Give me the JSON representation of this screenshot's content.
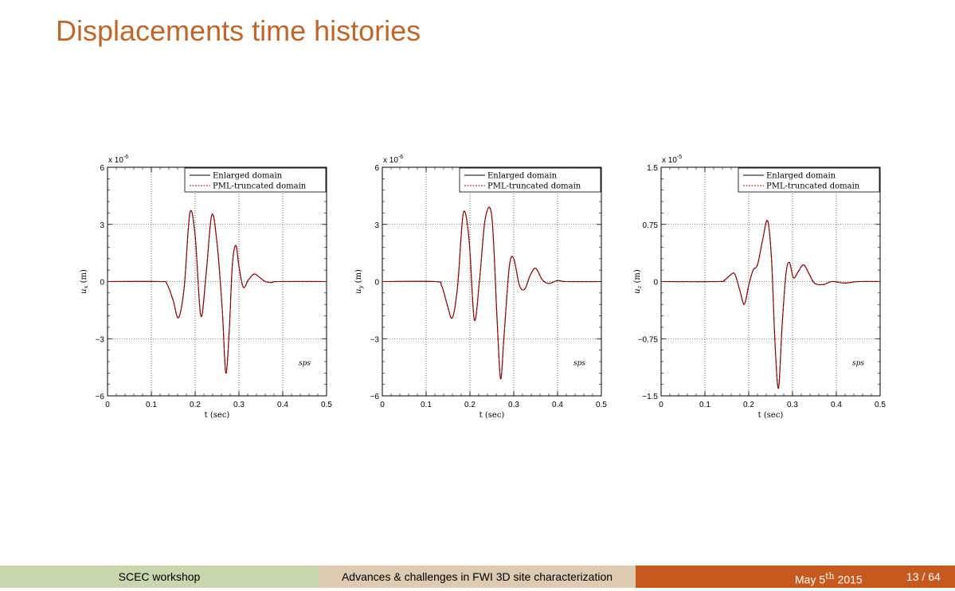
{
  "slide": {
    "title": "Displacements time histories"
  },
  "footer": {
    "left": "SCEC workshop",
    "center": "Advances & challenges in FWI 3D site characterization",
    "date_prefix": "May 5",
    "date_sup": "th",
    "date_year": "2015",
    "page": "13 / 64"
  },
  "colors": {
    "title": "#c0662a",
    "enlarged": "#000000",
    "pml": "#cc0000",
    "footer_left_bg": "#c9d5ad",
    "footer_center_bg": "#decab0",
    "footer_right_bg": "#c65a1e"
  },
  "chart_data": [
    {
      "type": "line",
      "xlabel": "t (sec)",
      "ylabel": "u_x (m)",
      "ylabel_sub": "x",
      "exponent": "-6",
      "xlim": [
        0,
        0.5
      ],
      "ylim": [
        -6,
        6
      ],
      "xticks": [
        0,
        0.1,
        0.2,
        0.3,
        0.4,
        0.5
      ],
      "xtick_labels": [
        "0",
        "0.1",
        "0.2",
        "0.3",
        "0.4",
        "0.5"
      ],
      "yticks": [
        -6,
        -3,
        0,
        3,
        6
      ],
      "ytick_labels": [
        "−6",
        "−3",
        "0",
        "3",
        "6"
      ],
      "grid": true,
      "legend_position": "top-right",
      "annotation": "sps",
      "series": [
        {
          "name": "Enlarged domain",
          "style": "solid",
          "color": "#000000"
        },
        {
          "name": "PML-truncated domain",
          "style": "dashed",
          "color": "#cc0000"
        }
      ],
      "x": [
        0,
        0.12,
        0.135,
        0.15,
        0.162,
        0.175,
        0.188,
        0.2,
        0.213,
        0.225,
        0.238,
        0.25,
        0.262,
        0.27,
        0.278,
        0.285,
        0.293,
        0.3,
        0.31,
        0.322,
        0.335,
        0.348,
        0.36,
        0.375,
        0.39,
        0.5
      ],
      "y": [
        0,
        0,
        -0.1,
        -1.0,
        -1.9,
        -0.3,
        3.6,
        2.4,
        -1.8,
        0.4,
        3.5,
        2.0,
        -1.5,
        -4.8,
        -2.5,
        0.9,
        1.9,
        0.8,
        -0.3,
        0.1,
        0.4,
        0.2,
        0.0,
        -0.05,
        0.0,
        0
      ]
    },
    {
      "type": "line",
      "xlabel": "t (sec)",
      "ylabel": "u_y (m)",
      "ylabel_sub": "y",
      "exponent": "-6",
      "xlim": [
        0,
        0.5
      ],
      "ylim": [
        -6,
        6
      ],
      "xticks": [
        0,
        0.1,
        0.2,
        0.3,
        0.4,
        0.5
      ],
      "xtick_labels": [
        "0",
        "0.1",
        "0.2",
        "0.3",
        "0.4",
        "0.5"
      ],
      "yticks": [
        -6,
        -3,
        0,
        3,
        6
      ],
      "ytick_labels": [
        "−6",
        "−3",
        "0",
        "3",
        "6"
      ],
      "grid": true,
      "legend_position": "top-right",
      "annotation": "sps",
      "series": [
        {
          "name": "Enlarged domain",
          "style": "solid",
          "color": "#000000"
        },
        {
          "name": "PML-truncated domain",
          "style": "dashed",
          "color": "#cc0000"
        }
      ],
      "x": [
        0,
        0.12,
        0.135,
        0.148,
        0.16,
        0.172,
        0.185,
        0.198,
        0.21,
        0.222,
        0.235,
        0.25,
        0.262,
        0.27,
        0.278,
        0.29,
        0.3,
        0.313,
        0.325,
        0.337,
        0.35,
        0.365,
        0.38,
        0.4,
        0.42,
        0.5
      ],
      "y": [
        0,
        0,
        -0.2,
        -1.2,
        -1.9,
        -0.2,
        3.6,
        2.2,
        -2.0,
        0.1,
        3.3,
        3.4,
        -2.0,
        -5.1,
        -2.8,
        0.8,
        1.2,
        -0.2,
        -0.4,
        0.3,
        0.7,
        0.1,
        -0.1,
        0.05,
        0.0,
        0
      ]
    },
    {
      "type": "line",
      "xlabel": "t (sec)",
      "ylabel": "u_z (m)",
      "ylabel_sub": "z",
      "exponent": "-5",
      "xlim": [
        0,
        0.5
      ],
      "ylim": [
        -1.5,
        1.5
      ],
      "xticks": [
        0,
        0.1,
        0.2,
        0.3,
        0.4,
        0.5
      ],
      "xtick_labels": [
        "0",
        "0.1",
        "0.2",
        "0.3",
        "0.4",
        "0.5"
      ],
      "yticks": [
        -1.5,
        -0.75,
        0,
        0.75,
        1.5
      ],
      "ytick_labels": [
        "−1.5",
        "−0.75",
        "0",
        "0.75",
        "1.5"
      ],
      "grid": true,
      "legend_position": "top-right",
      "annotation": "sps",
      "series": [
        {
          "name": "Enlarged domain",
          "style": "solid",
          "color": "#000000"
        },
        {
          "name": "PML-truncated domain",
          "style": "dashed",
          "color": "#cc0000"
        }
      ],
      "x": [
        0,
        0.13,
        0.145,
        0.157,
        0.168,
        0.18,
        0.19,
        0.2,
        0.21,
        0.22,
        0.232,
        0.243,
        0.252,
        0.26,
        0.268,
        0.276,
        0.285,
        0.293,
        0.302,
        0.312,
        0.325,
        0.338,
        0.35,
        0.37,
        0.39,
        0.42,
        0.45,
        0.5
      ],
      "y": [
        0,
        0,
        0.02,
        0.08,
        0.1,
        -0.12,
        -0.3,
        -0.05,
        0.15,
        0.22,
        0.55,
        0.8,
        0.3,
        -0.8,
        -1.4,
        -0.6,
        0.1,
        0.25,
        0.05,
        0.12,
        0.22,
        0.1,
        -0.02,
        -0.04,
        0.0,
        -0.02,
        0.0,
        0
      ]
    }
  ]
}
